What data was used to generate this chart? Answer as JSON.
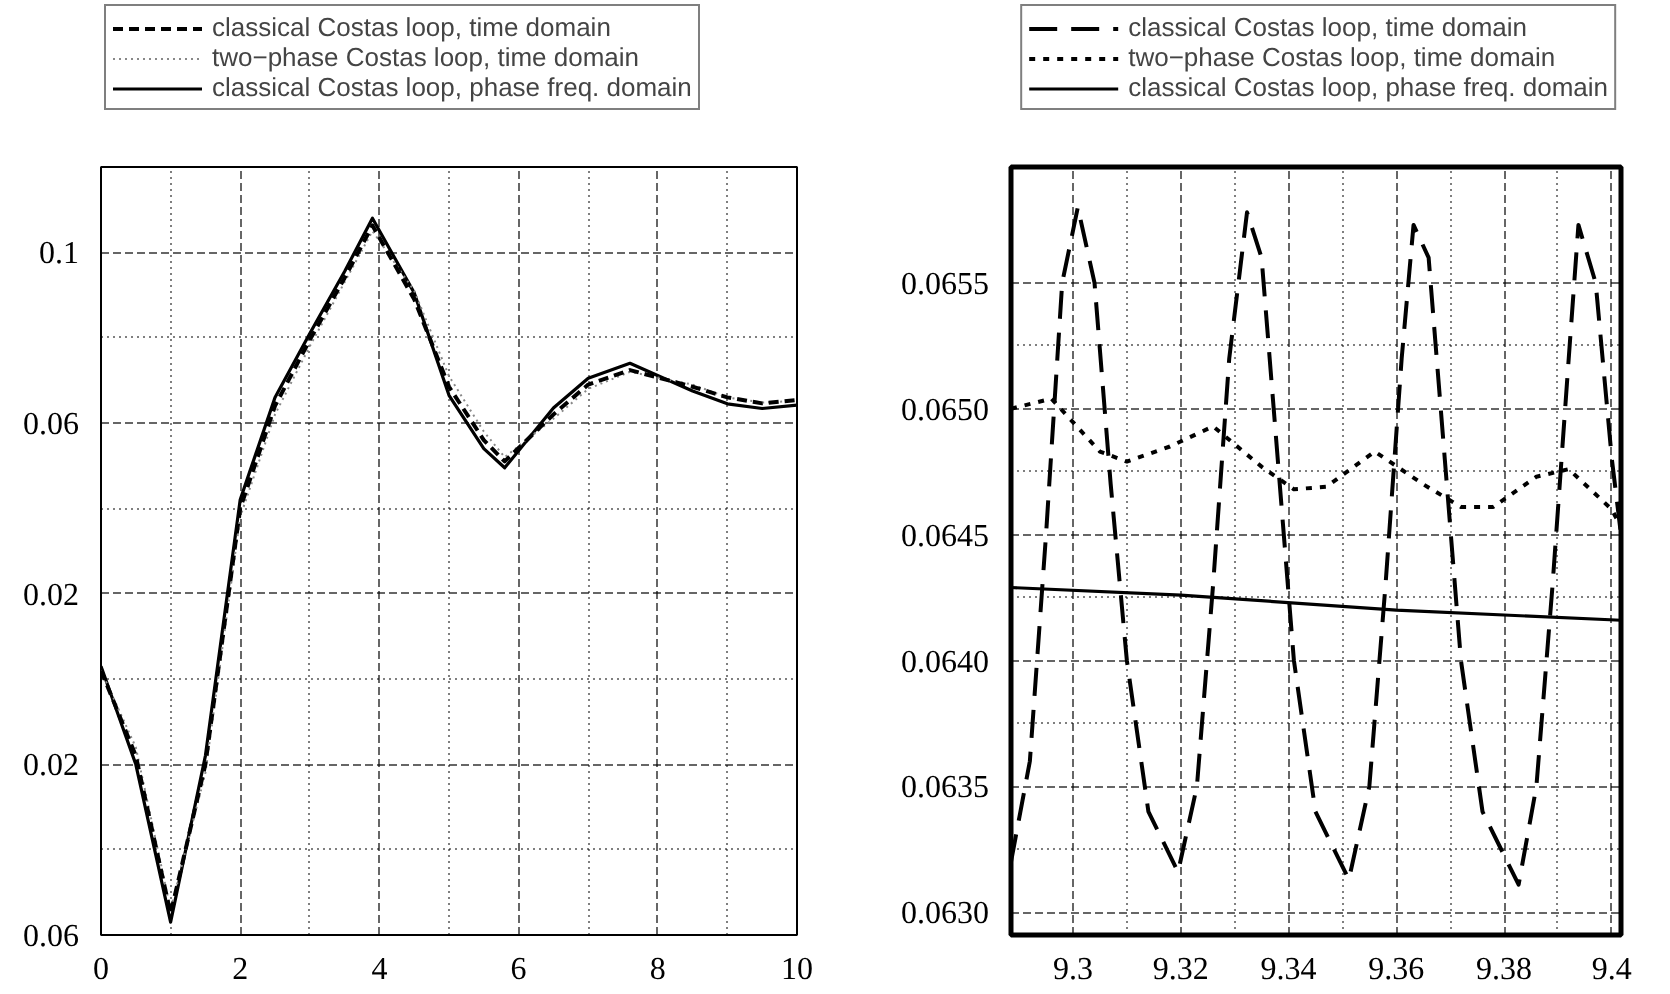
{
  "chart_data": [
    {
      "type": "line",
      "xlim": [
        0,
        10
      ],
      "ylim": [
        -0.06,
        0.12
      ],
      "xticks": [
        0,
        2,
        4,
        6,
        8,
        10
      ],
      "yticks": [
        {
          "value": -0.06,
          "label": "0.06"
        },
        {
          "value": -0.02,
          "label": "0.02"
        },
        0.02,
        0.06,
        0.1
      ],
      "grid": true,
      "legend": "top",
      "x": [
        0,
        0.5,
        1,
        1.5,
        2,
        2.5,
        3,
        3.5,
        3.9,
        4.5,
        5,
        5.5,
        5.8,
        6.5,
        7,
        7.6,
        8.5,
        9,
        9.5,
        10
      ],
      "series": [
        {
          "name": "classical Costas loop, time domain",
          "color": "#000000",
          "line_style": "dashed",
          "values": [
            0.002,
            -0.018,
            -0.055,
            -0.02,
            0.04,
            0.064,
            0.0795,
            0.094,
            0.1063,
            0.089,
            0.0685,
            0.056,
            0.051,
            0.062,
            0.069,
            0.0724,
            0.0685,
            0.066,
            0.0646,
            0.0654
          ]
        },
        {
          "name": "two−phase Costas loop, time domain",
          "color": "#888888",
          "line_style": "dotted",
          "values": [
            0.002,
            -0.016,
            -0.054,
            -0.022,
            0.038,
            0.062,
            0.078,
            0.093,
            0.105,
            0.091,
            0.071,
            0.058,
            0.052,
            0.061,
            0.068,
            0.072,
            0.069,
            0.066,
            0.0648,
            0.0652
          ]
        },
        {
          "name": "classical Costas loop, phase freq. domain",
          "color": "#000000",
          "line_style": "solid",
          "values": [
            0.003,
            -0.02,
            -0.057,
            -0.018,
            0.042,
            0.066,
            0.081,
            0.0955,
            0.108,
            0.0905,
            0.0665,
            0.054,
            0.0495,
            0.0635,
            0.0705,
            0.074,
            0.0675,
            0.0645,
            0.0634,
            0.0642
          ]
        }
      ]
    },
    {
      "type": "line",
      "xlim": [
        9.2885,
        9.4017
      ],
      "ylim": [
        0.06291,
        0.06596
      ],
      "xticks": [
        9.3,
        9.32,
        9.34,
        9.36,
        9.38,
        9.4
      ],
      "yticks": [
        {
          "value": 0.063,
          "label": "0.0630"
        },
        0.0635,
        {
          "value": 0.064,
          "label": "0.0640"
        },
        0.0645,
        {
          "value": 0.065,
          "label": "0.0650"
        },
        0.0655
      ],
      "grid": true,
      "legend": "top",
      "series": [
        {
          "name": "classical Costas loop, time domain",
          "color": "#000000",
          "line_style": "dashed",
          "x": [
            9.2885,
            9.292,
            9.295,
            9.298,
            9.3009,
            9.304,
            9.307,
            9.31,
            9.314,
            9.3195,
            9.323,
            9.326,
            9.329,
            9.3323,
            9.335,
            9.338,
            9.341,
            9.345,
            9.3512,
            9.355,
            9.358,
            9.361,
            9.3632,
            9.366,
            9.369,
            9.372,
            9.376,
            9.3827,
            9.386,
            9.389,
            9.392,
            9.3938,
            9.397,
            9.4,
            9.4017
          ],
          "values": [
            0.0632,
            0.0636,
            0.0645,
            0.0655,
            0.0658,
            0.0655,
            0.0647,
            0.064,
            0.0634,
            0.06316,
            0.0635,
            0.0643,
            0.0652,
            0.06578,
            0.0656,
            0.0648,
            0.064,
            0.0634,
            0.06313,
            0.0635,
            0.0643,
            0.0652,
            0.06573,
            0.0656,
            0.0648,
            0.064,
            0.0634,
            0.06311,
            0.0635,
            0.0643,
            0.0652,
            0.06573,
            0.0655,
            0.0648,
            0.0645
          ]
        },
        {
          "name": "two−phase Costas loop, time domain",
          "color": "#000000",
          "line_style": "dotted",
          "x": [
            9.2885,
            9.296,
            9.305,
            9.31,
            9.318,
            9.326,
            9.335,
            9.341,
            9.347,
            9.356,
            9.365,
            9.372,
            9.378,
            9.386,
            9.392,
            9.4,
            9.4017
          ],
          "values": [
            0.065,
            0.06504,
            0.06483,
            0.06479,
            0.06485,
            0.06493,
            0.06477,
            0.06468,
            0.06469,
            0.06483,
            0.0647,
            0.06461,
            0.06461,
            0.06473,
            0.06476,
            0.0646,
            0.06453
          ]
        },
        {
          "name": "classical Costas loop, phase freq. domain",
          "color": "#000000",
          "line_style": "solid",
          "x": [
            9.2885,
            9.32,
            9.36,
            9.4017
          ],
          "values": [
            0.06429,
            0.06426,
            0.0642,
            0.06416
          ]
        }
      ]
    }
  ]
}
